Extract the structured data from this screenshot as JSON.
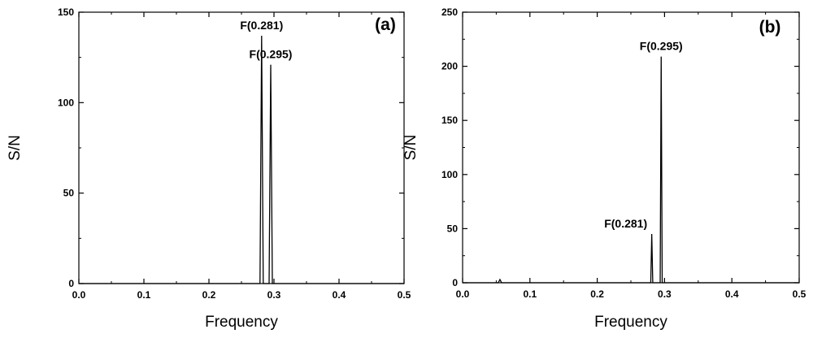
{
  "chart_data": [
    {
      "type": "line",
      "panel_label": "(a)",
      "xlabel": "Frequency",
      "ylabel": "S/N",
      "xlim": [
        0.0,
        0.5
      ],
      "ylim": [
        0,
        150
      ],
      "xticks": [
        "0.0",
        "0.1",
        "0.2",
        "0.3",
        "0.4",
        "0.5"
      ],
      "yticks": [
        "0",
        "50",
        "100",
        "150"
      ],
      "grid": false,
      "series": [
        {
          "x": [
            0.0,
            0.275,
            0.2785,
            0.281,
            0.2835,
            0.29,
            0.2925,
            0.295,
            0.2975,
            0.5
          ],
          "y": [
            0,
            0,
            0,
            137,
            0,
            0,
            0,
            121,
            0,
            0
          ]
        }
      ],
      "annotations": [
        {
          "text": "F(0.281)",
          "x": 0.281,
          "y": 137
        },
        {
          "text": "F(0.295)",
          "x": 0.295,
          "y": 121
        }
      ]
    },
    {
      "type": "line",
      "panel_label": "(b)",
      "xlabel": "Frequency",
      "ylabel": "S/N",
      "xlim": [
        0.0,
        0.5
      ],
      "ylim": [
        0,
        250
      ],
      "xticks": [
        "0.0",
        "0.1",
        "0.2",
        "0.3",
        "0.4",
        "0.5"
      ],
      "yticks": [
        "0",
        "50",
        "100",
        "150",
        "200",
        "250"
      ],
      "grid": false,
      "series": [
        {
          "x": [
            0.0,
            0.053,
            0.0555,
            0.058,
            0.278,
            0.2795,
            0.281,
            0.2825,
            0.292,
            0.2935,
            0.295,
            0.2965,
            0.5
          ],
          "y": [
            0,
            0,
            3,
            0,
            0,
            0,
            45,
            0,
            0,
            0,
            209,
            0,
            0
          ]
        }
      ],
      "annotations": [
        {
          "text": "F(0.295)",
          "x": 0.295,
          "y": 209
        },
        {
          "text": "F(0.281)",
          "x": 0.281,
          "y": 45
        }
      ]
    }
  ]
}
